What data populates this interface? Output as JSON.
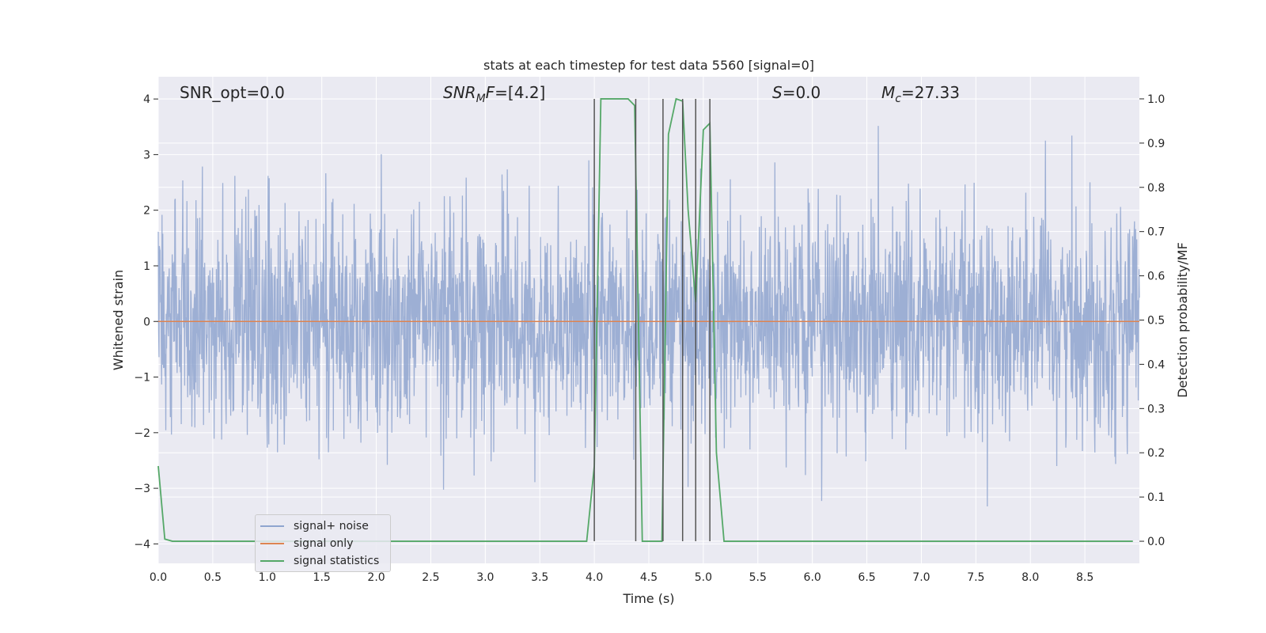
{
  "chart_data": {
    "type": "line",
    "title": "stats at each timestep for test data 5560 [signal=0]",
    "xlabel": "Time (s)",
    "ylabel_left": "Whitened strain",
    "ylabel_right": "Detection probability/MF",
    "xlim": [
      0.0,
      9.0
    ],
    "ylim_left": [
      -4.35,
      4.4
    ],
    "ylim_right": [
      -0.05,
      1.05
    ],
    "x_ticks": [
      "0.0",
      "0.5",
      "1.0",
      "1.5",
      "2.0",
      "2.5",
      "3.0",
      "3.5",
      "4.0",
      "4.5",
      "5.0",
      "5.5",
      "6.0",
      "6.5",
      "7.0",
      "7.5",
      "8.0",
      "8.5"
    ],
    "y_ticks_left": [
      "4",
      "3",
      "2",
      "1",
      "0",
      "−1",
      "−2",
      "−3",
      "−4"
    ],
    "y_ticks_right": [
      "1.0",
      "0.9",
      "0.8",
      "0.7",
      "0.6",
      "0.5",
      "0.4",
      "0.3",
      "0.2",
      "0.1",
      "0.0"
    ],
    "grid": true,
    "annotations": {
      "snr_opt": "SNR_opt=0.0",
      "snr_mf": "SNR",
      "snr_mf_sub": "M",
      "snr_mf_rest": "F=[4.2]",
      "s": "S",
      "s_rest": "=0.0",
      "mc": "M",
      "mc_sub": "c",
      "mc_rest": "=27.33"
    },
    "series": [
      {
        "name": "signal+ noise",
        "color": "#8fa5cf",
        "axis": "left",
        "description": "whitened noise, roughly Gaussian with std ~1 over 0–9 s"
      },
      {
        "name": "signal only",
        "color": "#dd8452",
        "axis": "left",
        "x": [
          0.0,
          9.0
        ],
        "y": [
          0.0,
          0.0
        ]
      },
      {
        "name": "signal statistics",
        "color": "#55a868",
        "axis": "right",
        "x": [
          0.0,
          0.06,
          0.13,
          1.0,
          2.0,
          3.0,
          3.93,
          4.0,
          4.06,
          4.31,
          4.37,
          4.44,
          4.62,
          4.68,
          4.75,
          4.81,
          4.86,
          4.93,
          5.0,
          5.06,
          5.12,
          5.19,
          6.0,
          7.0,
          8.0,
          8.94
        ],
        "y": [
          0.17,
          0.005,
          0.0,
          0.0,
          0.0,
          0.0,
          0.0,
          0.17,
          1.0,
          1.0,
          0.985,
          0.0,
          0.0,
          0.92,
          1.0,
          0.995,
          0.75,
          0.54,
          0.93,
          0.945,
          0.2,
          0.0,
          0.0,
          0.0,
          0.0,
          0.0
        ]
      }
    ],
    "vertical_lines": {
      "x": [
        4.0,
        4.38,
        4.63,
        4.81,
        4.93,
        5.06
      ],
      "color": "#555555"
    },
    "legend_position": "lower-left"
  }
}
